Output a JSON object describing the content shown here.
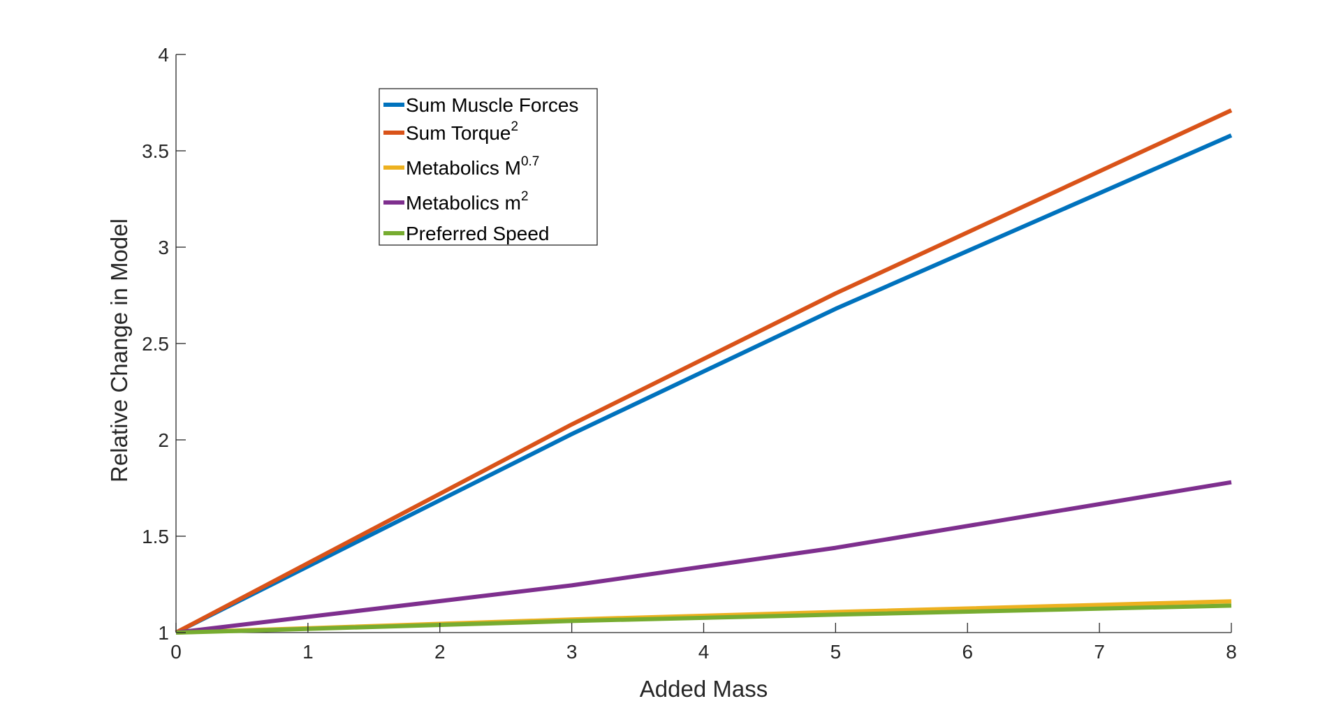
{
  "chart_data": {
    "type": "line",
    "title": "",
    "xlabel": "Added Mass",
    "ylabel": "Relative Change in Model",
    "xlim": [
      0,
      8
    ],
    "ylim": [
      1,
      4
    ],
    "xticks": [
      0,
      1,
      2,
      3,
      4,
      5,
      6,
      7,
      8
    ],
    "yticks": [
      1,
      1.5,
      2,
      2.5,
      3,
      3.5,
      4
    ],
    "xtick_labels": [
      "0",
      "1",
      "2",
      "3",
      "4",
      "5",
      "6",
      "7",
      "8"
    ],
    "ytick_labels": [
      "1",
      "1.5",
      "2",
      "2.5",
      "3",
      "3.5",
      "4"
    ],
    "grid": false,
    "legend_position": "top-left (inset)",
    "series": [
      {
        "name": "Sum Muscle Forces",
        "sup": "",
        "color": "#0072BD",
        "x": [
          0,
          3,
          5,
          8
        ],
        "y": [
          1.0,
          2.03,
          2.68,
          3.58
        ]
      },
      {
        "name": "Sum Torque",
        "sup": "2",
        "color": "#D95319",
        "x": [
          0,
          3,
          5,
          8
        ],
        "y": [
          1.0,
          2.08,
          2.76,
          3.71
        ]
      },
      {
        "name": "Metabolics M",
        "sup": "0.7",
        "color": "#EDB120",
        "x": [
          0,
          3,
          5,
          8
        ],
        "y": [
          1.0,
          1.068,
          1.107,
          1.162
        ]
      },
      {
        "name": "Metabolics m",
        "sup": "2",
        "color": "#7E2F8E",
        "x": [
          0,
          3,
          5,
          8
        ],
        "y": [
          1.0,
          1.245,
          1.44,
          1.78
        ]
      },
      {
        "name": "Preferred Speed",
        "sup": "",
        "color": "#77AC30",
        "x": [
          0,
          0.7,
          3,
          5,
          8
        ],
        "y": [
          1.0,
          1.013,
          1.06,
          1.093,
          1.14
        ]
      }
    ]
  }
}
